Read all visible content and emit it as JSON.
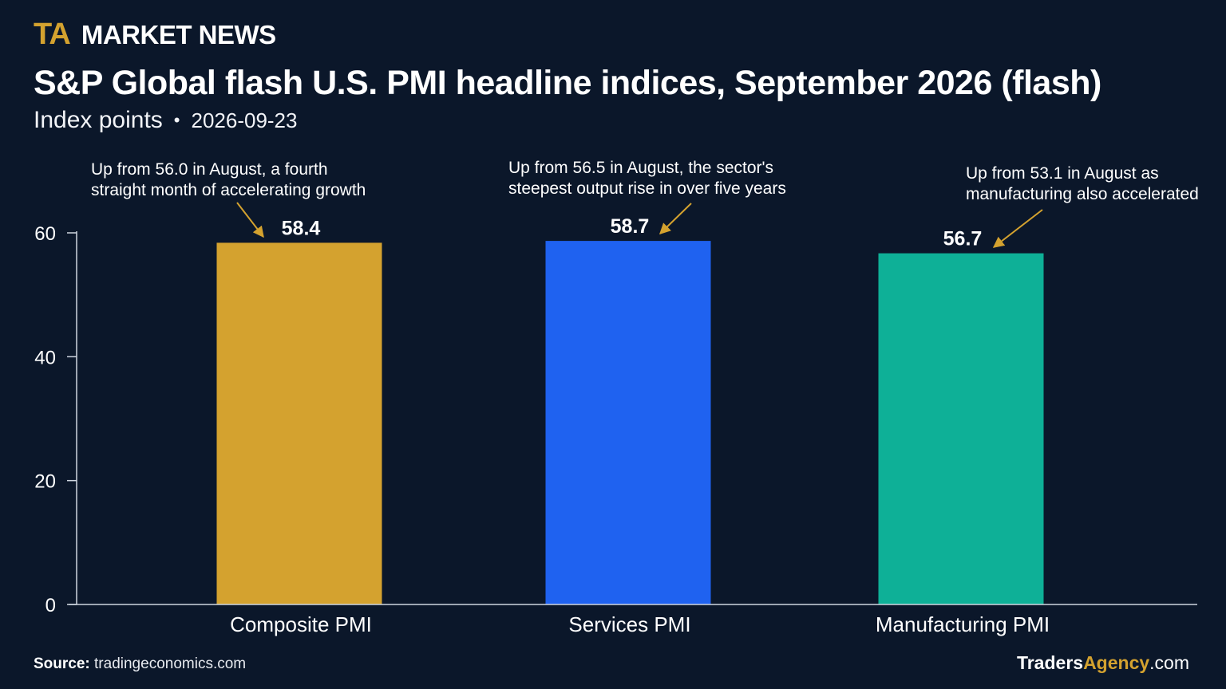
{
  "brand": {
    "logo": "TA",
    "name": "MARKET NEWS"
  },
  "header": {
    "title": "S&P Global flash U.S. PMI headline indices, September 2026 (flash)",
    "subtitle": "Index points",
    "separator": "•",
    "date": "2026-09-23"
  },
  "chart_data": {
    "type": "bar",
    "categories": [
      "Composite PMI",
      "Services PMI",
      "Manufacturing PMI"
    ],
    "values": [
      58.4,
      58.7,
      56.7
    ],
    "value_labels": [
      "58.4",
      "58.7",
      "56.7"
    ],
    "colors": [
      "#d4a22f",
      "#1f62f0",
      "#0eb097"
    ],
    "title": "S&P Global flash U.S. PMI headline indices, September 2026 (flash)",
    "xlabel": "",
    "ylabel": "",
    "ylim": [
      0,
      60
    ],
    "yticks": [
      0,
      20,
      40,
      60
    ],
    "ytick_labels": [
      "0",
      "20",
      "40",
      "60"
    ],
    "grid": false,
    "legend": "none",
    "annotations": [
      {
        "category": "Composite PMI",
        "lines": [
          "Up from 56.0 in August, a fourth",
          "straight month of accelerating growth"
        ]
      },
      {
        "category": "Services PMI",
        "lines": [
          "Up from 56.5 in August, the sector's",
          "steepest output rise in over five years"
        ]
      },
      {
        "category": "Manufacturing PMI",
        "lines": [
          "Up from 53.1 in August as",
          "manufacturing also accelerated"
        ]
      }
    ],
    "annotation_color": "#d4a22f"
  },
  "footer": {
    "source_label": "Source:",
    "source_text": "tradingeconomics.com",
    "site_part1": "Traders",
    "site_part2": "Agency",
    "site_part3": ".com"
  }
}
